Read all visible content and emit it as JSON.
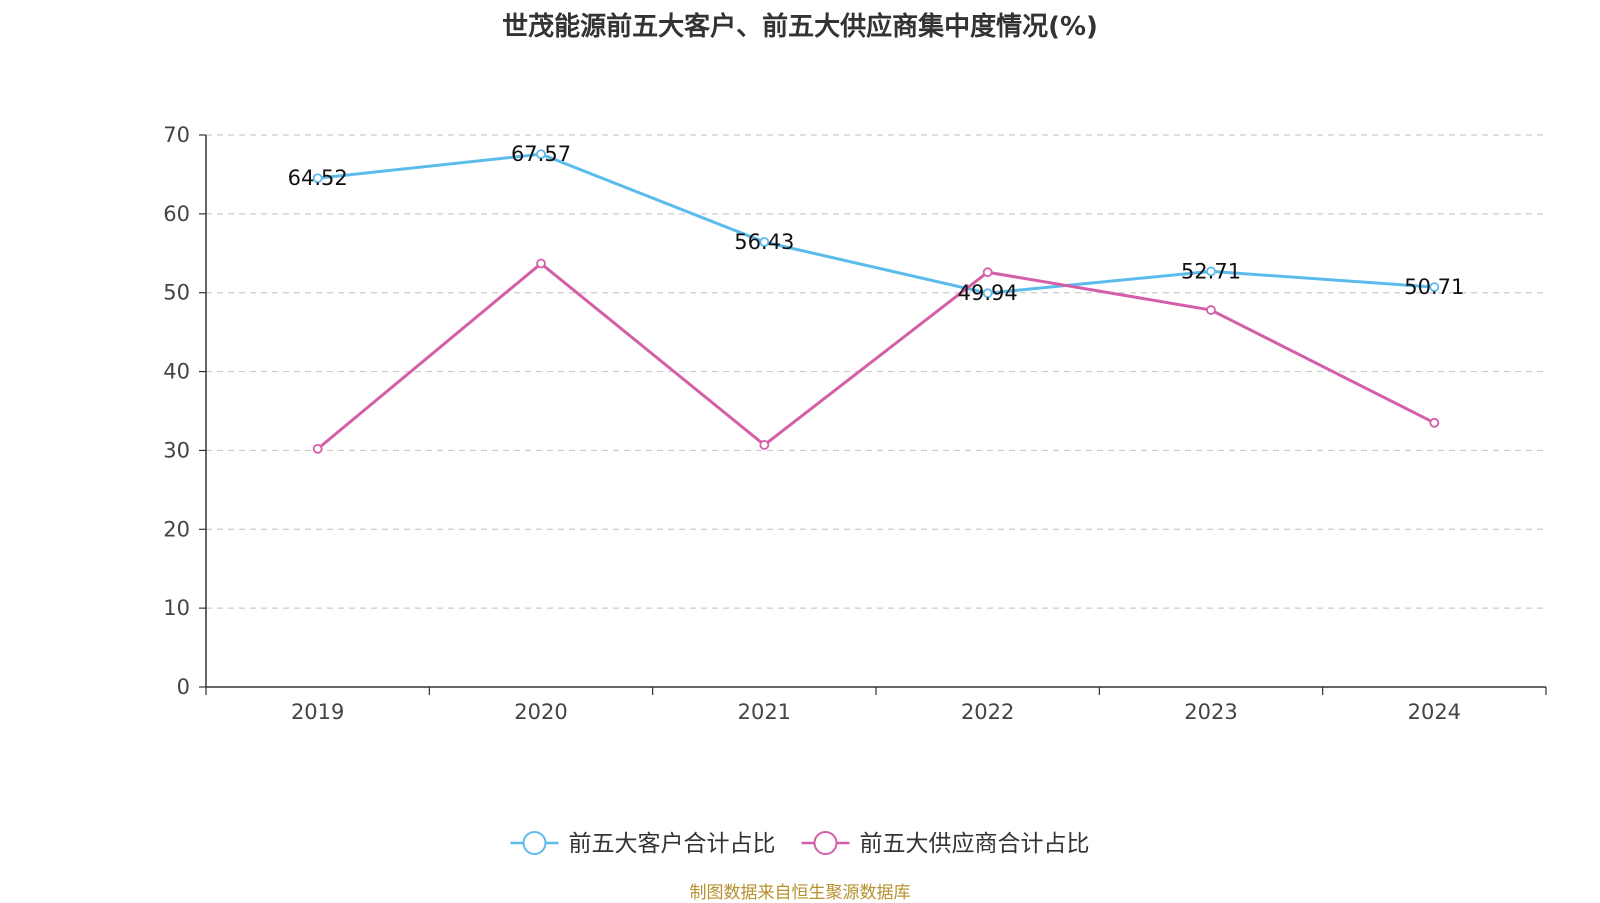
{
  "title": "世茂能源前五大客户、前五大供应商集中度情况(%)",
  "source": "制图数据来自恒生聚源数据库",
  "chart_data": {
    "type": "line",
    "title": "世茂能源前五大客户、前五大供应商集中度情况(%)",
    "categories": [
      "2019",
      "2020",
      "2021",
      "2022",
      "2023",
      "2024"
    ],
    "ylim": [
      0,
      70
    ],
    "yticks": [
      0,
      10,
      20,
      30,
      40,
      50,
      60,
      70
    ],
    "grid": "horizontal-dashed",
    "legend": "bottom-center",
    "series": [
      {
        "name": "前五大客户合计占比",
        "color": "#5bbcec",
        "values": [
          64.52,
          67.57,
          56.43,
          49.94,
          52.71,
          50.71
        ],
        "labels": [
          "64.52",
          "67.57",
          "56.43",
          "49.94",
          "52.71",
          "50.71"
        ]
      },
      {
        "name": "前五大供应商合计占比",
        "color": "#d45fa8",
        "values": [
          30.2,
          53.7,
          30.7,
          52.6,
          47.8,
          33.5
        ],
        "labels": []
      }
    ]
  }
}
